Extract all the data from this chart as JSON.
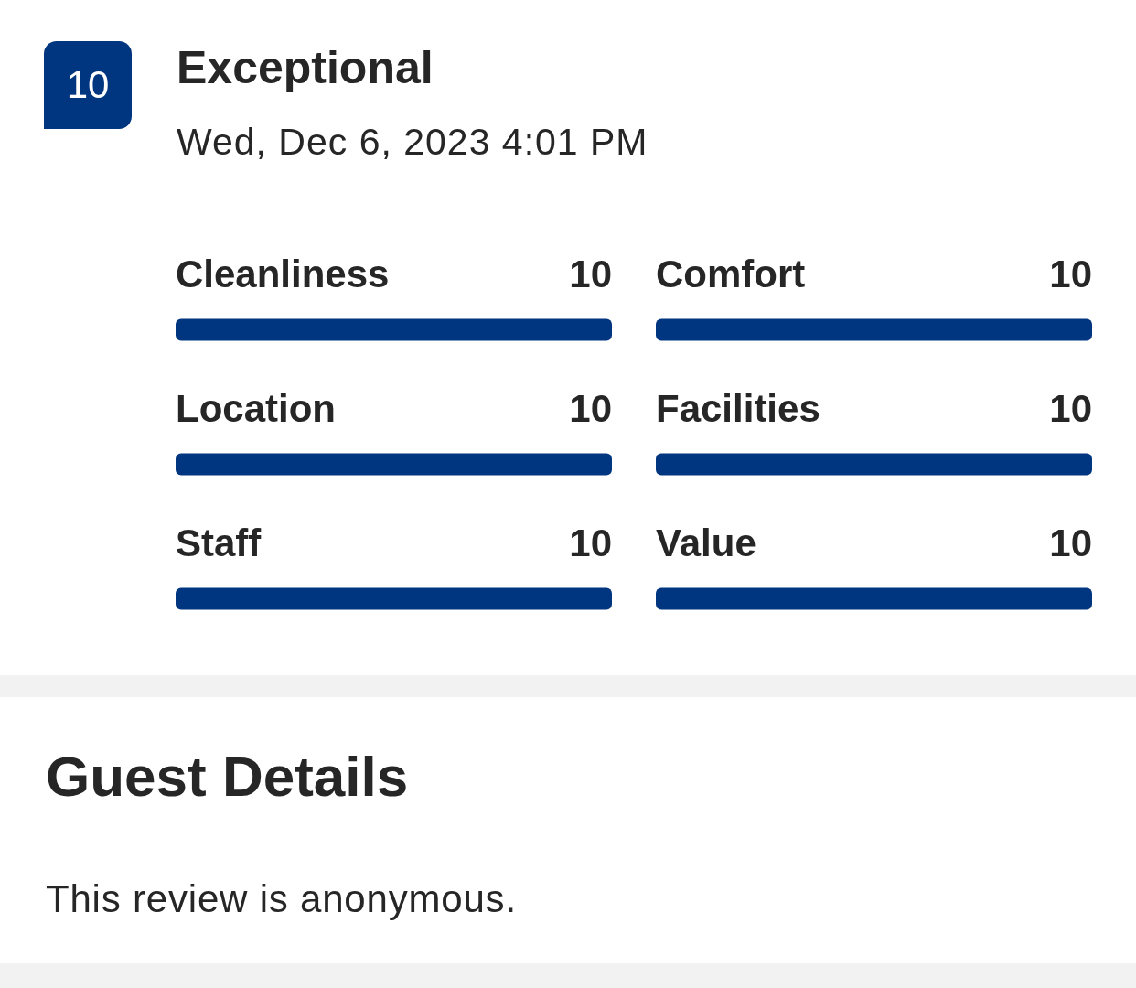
{
  "chart_data": [
    {
      "type": "bar",
      "orientation": "horizontal",
      "title": "Exceptional",
      "subtitle": "Wed, Dec 6, 2023 4:01 PM",
      "categories": [
        "Cleanliness",
        "Location",
        "Staff"
      ],
      "values": [
        10,
        10,
        10
      ],
      "color": "#003580",
      "data_labels": true,
      "annotations": [
        "10",
        "Guest Details",
        "This review is anonymous."
      ]
    },
    {
      "type": "bar",
      "orientation": "horizontal",
      "categories": [
        "Comfort",
        "Facilities",
        "Value"
      ],
      "values": [
        10,
        10,
        10
      ],
      "color": "#003580",
      "data_labels": true
    }
  ]
}
